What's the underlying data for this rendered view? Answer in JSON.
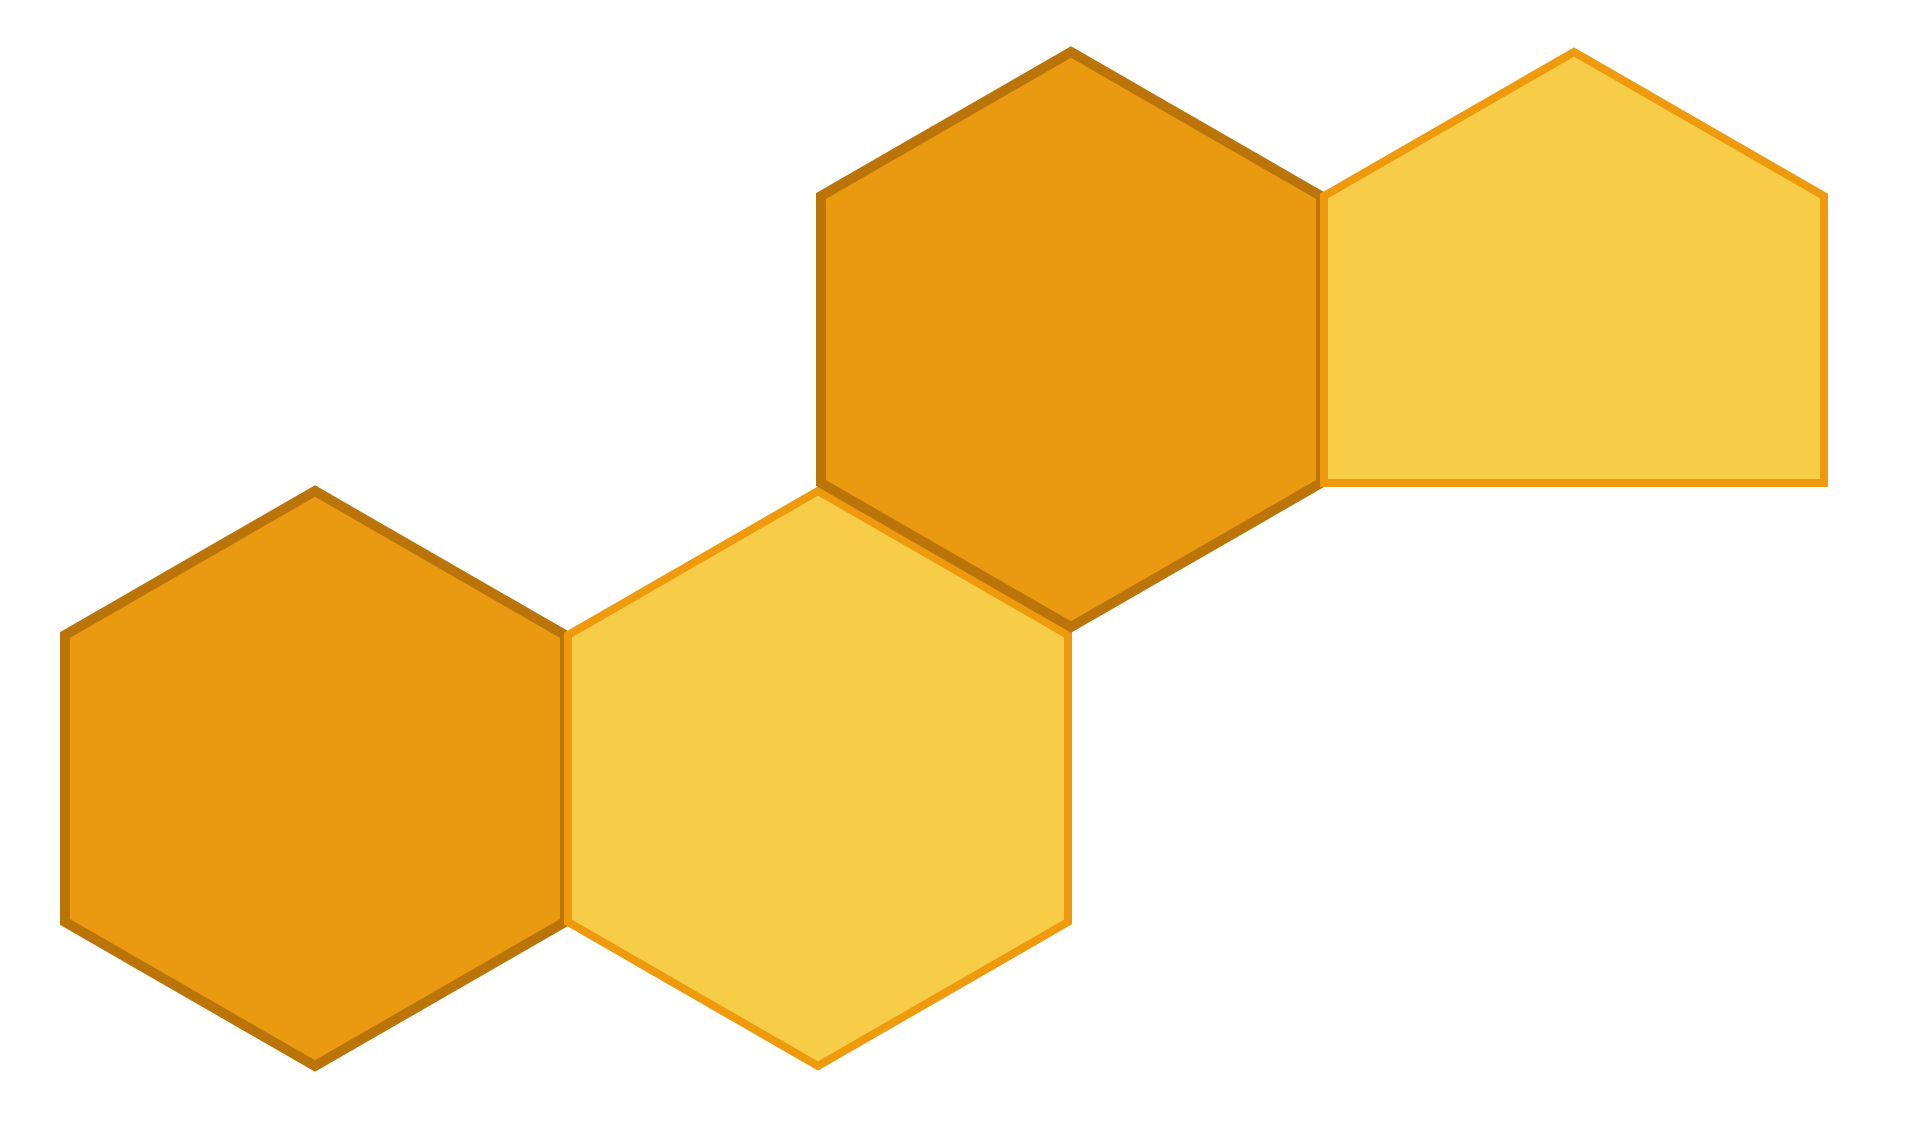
{
  "diagram": {
    "shapes": [
      {
        "name": "hexagon-bottom-left",
        "kind": "hexagon",
        "style": "dark"
      },
      {
        "name": "hexagon-bottom-middle",
        "kind": "hexagon",
        "style": "light"
      },
      {
        "name": "hexagon-top-middle",
        "kind": "hexagon",
        "style": "dark"
      },
      {
        "name": "pentagon-top-right",
        "kind": "pentagon",
        "style": "light"
      }
    ]
  },
  "colors": {
    "background": "#ffffff",
    "dark_fill": "#EA9A10",
    "dark_stroke": "#BB7408",
    "light_fill": "#F7CD47",
    "light_stroke": "#EE9A0C"
  }
}
